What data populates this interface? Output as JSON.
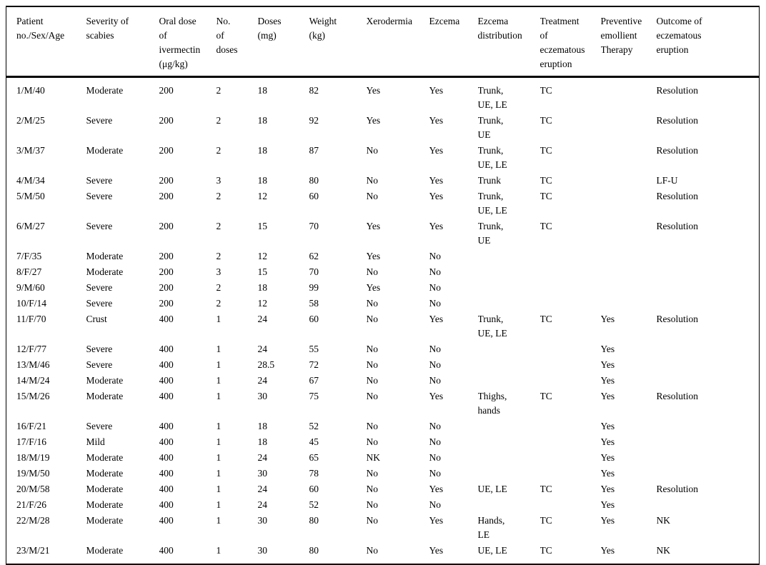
{
  "page": {
    "background_color": "#ffffff",
    "text_color": "#000000",
    "border_color": "#000000"
  },
  "table": {
    "columns": [
      {
        "id": "patient",
        "label": "Patient\nno./Sex/Age"
      },
      {
        "id": "severity",
        "label": "Severity of\nscabies"
      },
      {
        "id": "oral-dose",
        "label": "Oral dose\nof\nivermectin\n(μg/kg)"
      },
      {
        "id": "no-of-doses",
        "label": "No.\nof\ndoses"
      },
      {
        "id": "doses-mg",
        "label": "Doses\n(mg)"
      },
      {
        "id": "weight-kg",
        "label": "Weight\n(kg)"
      },
      {
        "id": "xerodermia",
        "label": "Xerodermia"
      },
      {
        "id": "ezcema",
        "label": "Ezcema"
      },
      {
        "id": "ezcema-distribution",
        "label": "Ezcema\ndistribution"
      },
      {
        "id": "treatment",
        "label": "Treatment\nof\neczematous\neruption"
      },
      {
        "id": "preventive-emollient",
        "label": "Preventive\nemollient\nTherapy"
      },
      {
        "id": "outcome",
        "label": "Outcome of\neczematous\neruption"
      }
    ],
    "rows": [
      [
        "1/M/40",
        "Moderate",
        "200",
        "2",
        "18",
        "82",
        "Yes",
        "Yes",
        "Trunk,\nUE, LE",
        "TC",
        "",
        "Resolution"
      ],
      [
        "2/M/25",
        "Severe",
        "200",
        "2",
        "18",
        "92",
        "Yes",
        "Yes",
        "Trunk,\nUE",
        "TC",
        "",
        "Resolution"
      ],
      [
        "3/M/37",
        "Moderate",
        "200",
        "2",
        "18",
        "87",
        "No",
        "Yes",
        "Trunk,\nUE, LE",
        "TC",
        "",
        "Resolution"
      ],
      [
        "4/M/34",
        "Severe",
        "200",
        "3",
        "18",
        "80",
        "No",
        "Yes",
        "Trunk",
        "TC",
        "",
        "LF-U"
      ],
      [
        "5/M/50",
        "Severe",
        "200",
        "2",
        "12",
        "60",
        "No",
        "Yes",
        "Trunk,\nUE, LE",
        "TC",
        "",
        "Resolution"
      ],
      [
        "6/M/27",
        "Severe",
        "200",
        "2",
        "15",
        "70",
        "Yes",
        "Yes",
        "Trunk,\nUE",
        "TC",
        "",
        "Resolution"
      ],
      [
        "7/F/35",
        "Moderate",
        "200",
        "2",
        "12",
        "62",
        "Yes",
        "No",
        "",
        "",
        "",
        ""
      ],
      [
        "8/F/27",
        "Moderate",
        "200",
        "3",
        "15",
        "70",
        "No",
        "No",
        "",
        "",
        "",
        ""
      ],
      [
        "9/M/60",
        "Severe",
        "200",
        "2",
        "18",
        "99",
        "Yes",
        "No",
        "",
        "",
        "",
        ""
      ],
      [
        "10/F/14",
        "Severe",
        "200",
        "2",
        "12",
        "58",
        "No",
        "No",
        "",
        "",
        "",
        ""
      ],
      [
        "11/F/70",
        "Crust",
        "400",
        "1",
        "24",
        "60",
        "No",
        "Yes",
        "Trunk,\nUE, LE",
        "TC",
        "Yes",
        "Resolution"
      ],
      [
        "12/F/77",
        "Severe",
        "400",
        "1",
        "24",
        "55",
        "No",
        "No",
        "",
        "",
        "Yes",
        ""
      ],
      [
        "13/M/46",
        "Severe",
        "400",
        "1",
        "28.5",
        "72",
        "No",
        "No",
        "",
        "",
        "Yes",
        ""
      ],
      [
        "14/M/24",
        "Moderate",
        "400",
        "1",
        "24",
        "67",
        "No",
        "No",
        "",
        "",
        "Yes",
        ""
      ],
      [
        "15/M/26",
        "Moderate",
        "400",
        "1",
        "30",
        "75",
        "No",
        "Yes",
        "Thighs,\nhands",
        "TC",
        "Yes",
        "Resolution"
      ],
      [
        "16/F/21",
        "Severe",
        "400",
        "1",
        "18",
        "52",
        "No",
        "No",
        "",
        "",
        "Yes",
        ""
      ],
      [
        "17/F/16",
        "Mild",
        "400",
        "1",
        "18",
        "45",
        "No",
        "No",
        "",
        "",
        "Yes",
        ""
      ],
      [
        "18/M/19",
        "Moderate",
        "400",
        "1",
        "24",
        "65",
        "NK",
        "No",
        "",
        "",
        "Yes",
        ""
      ],
      [
        "19/M/50",
        "Moderate",
        "400",
        "1",
        "30",
        "78",
        "No",
        "No",
        "",
        "",
        "Yes",
        ""
      ],
      [
        "20/M/58",
        "Moderate",
        "400",
        "1",
        "24",
        "60",
        "No",
        "Yes",
        "UE, LE",
        "TC",
        "Yes",
        "Resolution"
      ],
      [
        "21/F/26",
        "Moderate",
        "400",
        "1",
        "24",
        "52",
        "No",
        "No",
        "",
        "",
        "Yes",
        ""
      ],
      [
        "22/M/28",
        "Moderate",
        "400",
        "1",
        "30",
        "80",
        "No",
        "Yes",
        "Hands,\nLE",
        "TC",
        "Yes",
        "NK"
      ],
      [
        "23/M/21",
        "Moderate",
        "400",
        "1",
        "30",
        "80",
        "No",
        "Yes",
        "UE, LE",
        "TC",
        "Yes",
        "NK"
      ]
    ]
  }
}
